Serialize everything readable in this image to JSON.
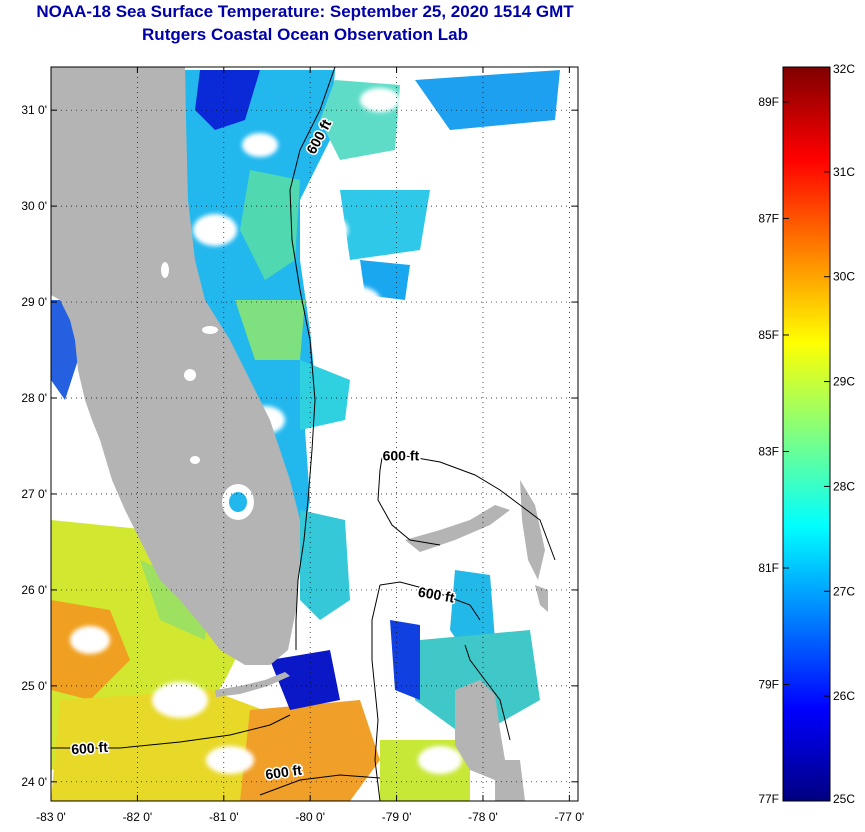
{
  "title": "NOAA-18 Sea Surface Temperature:  September 25, 2020 1514 GMT",
  "subtitle": "Rutgers Coastal Ocean Observation Lab",
  "map": {
    "lon_range": [
      -83,
      -76.9
    ],
    "lat_range": [
      23.8,
      31.45
    ],
    "x_ticks": [
      {
        "value": -83,
        "label": "-83 0'"
      },
      {
        "value": -82,
        "label": "-82 0'"
      },
      {
        "value": -81,
        "label": "-81 0'"
      },
      {
        "value": -80,
        "label": "-80 0'"
      },
      {
        "value": -79,
        "label": "-79 0'"
      },
      {
        "value": -78,
        "label": "-78 0'"
      },
      {
        "value": -77,
        "label": "-77 0'"
      }
    ],
    "y_ticks": [
      {
        "value": 24,
        "label": "24 0'"
      },
      {
        "value": 25,
        "label": "25 0'"
      },
      {
        "value": 26,
        "label": "26 0'"
      },
      {
        "value": 27,
        "label": "27 0'"
      },
      {
        "value": 28,
        "label": "28 0'"
      },
      {
        "value": 29,
        "label": "29 0'"
      },
      {
        "value": 30,
        "label": "30 0'"
      },
      {
        "value": 31,
        "label": "31 0'"
      }
    ],
    "contour_labels": [
      {
        "text": "600 ft",
        "lon": -79.85,
        "lat": 30.7,
        "rotate": -62
      },
      {
        "text": "600 ft",
        "lon": -78.95,
        "lat": 27.35,
        "rotate": 0
      },
      {
        "text": "600 ft",
        "lon": -78.55,
        "lat": 25.9,
        "rotate": 10
      },
      {
        "text": "600 ft",
        "lon": -82.55,
        "lat": 24.3,
        "rotate": -4
      },
      {
        "text": "600 ft",
        "lon": -80.3,
        "lat": 24.05,
        "rotate": -8
      }
    ],
    "colors": {
      "land": "#b4b4b4",
      "cloud": "#ffffff",
      "contour": "#000000",
      "grid": "#000000"
    }
  },
  "colorbar": {
    "celsius": [
      {
        "value": 25,
        "label": "25C"
      },
      {
        "value": 26,
        "label": "26C"
      },
      {
        "value": 27,
        "label": "27C"
      },
      {
        "value": 28,
        "label": "28C"
      },
      {
        "value": 29,
        "label": "29C"
      },
      {
        "value": 30,
        "label": "30C"
      },
      {
        "value": 31,
        "label": "31C"
      },
      {
        "value": 32,
        "label": "32C"
      }
    ],
    "fahrenheit": [
      {
        "value": 77,
        "label": "77F"
      },
      {
        "value": 79,
        "label": "79F"
      },
      {
        "value": 81,
        "label": "81F"
      },
      {
        "value": 83,
        "label": "83F"
      },
      {
        "value": 85,
        "label": "85F"
      },
      {
        "value": 87,
        "label": "87F"
      },
      {
        "value": 89,
        "label": "89F"
      }
    ],
    "range_c": [
      25,
      32
    ],
    "gradient": [
      "#00007f",
      "#0000ff",
      "#0080ff",
      "#00ffff",
      "#80ff80",
      "#ffff00",
      "#ff8000",
      "#ff0000",
      "#7f0000"
    ]
  }
}
